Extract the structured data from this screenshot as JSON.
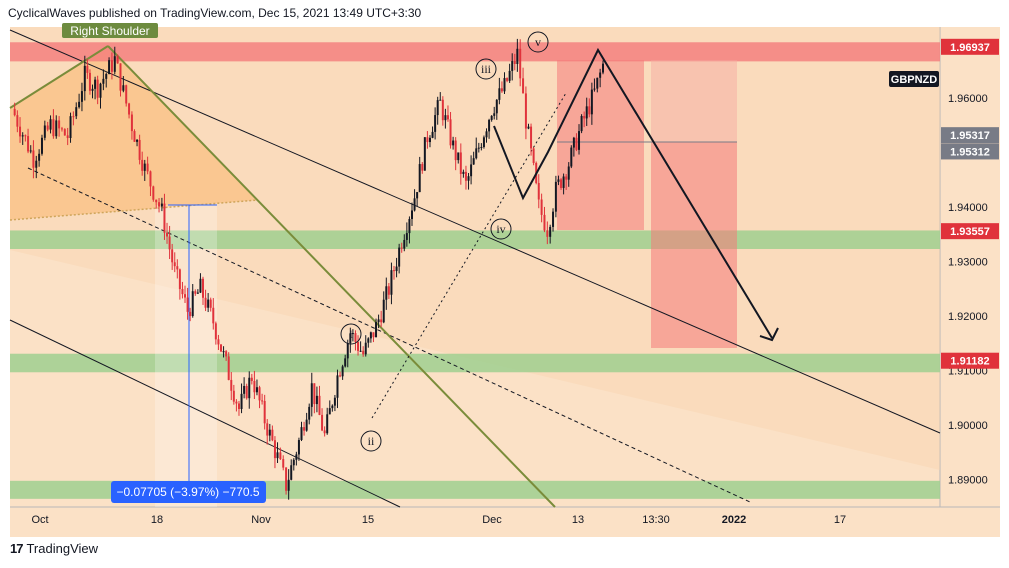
{
  "header": {
    "attribution": "CyclicalWaves published on TradingView.com, Dec 15, 2021 13:49 UTC+3:30"
  },
  "footer": {
    "brand": "TradingView",
    "logo_icon": "tradingview-logo-icon"
  },
  "colors": {
    "background": "#fbe1c6",
    "up": "#131722",
    "down": "#e0323b",
    "green_zone": "#9fcf8f",
    "red_zone": "#f47a7a",
    "label_red": "#e0323b",
    "label_gray": "#787b86",
    "label_black": "#131722",
    "measure_blue": "#2962ff"
  },
  "chart_data": {
    "type": "candlestick",
    "symbol_label": "GBPNZD",
    "currency_label": "NZD",
    "xlabels": [
      "Oct",
      "18",
      "Nov",
      "15",
      "Dec",
      "13",
      "13:30",
      "2022",
      "17"
    ],
    "ylim": [
      1.885,
      1.973
    ],
    "yticks": [
      1.89,
      1.9,
      1.91,
      1.92,
      1.93,
      1.94,
      1.95,
      1.96
    ],
    "price_labels": [
      {
        "value": "1.96937",
        "price": 1.96937,
        "style": "red"
      },
      {
        "value": "1.95317",
        "price": 1.95317,
        "style": "gray"
      },
      {
        "value": "1.95312",
        "price": 1.95312,
        "style": "gray"
      },
      {
        "value": "1.93557",
        "price": 1.93557,
        "style": "red"
      },
      {
        "value": "1.91182",
        "price": 1.91182,
        "style": "red"
      }
    ],
    "horizontal_zones": [
      {
        "type": "resistance",
        "from": 1.9667,
        "to": 1.9702
      },
      {
        "type": "support",
        "from": 1.9323,
        "to": 1.9357
      },
      {
        "type": "support",
        "from": 1.9097,
        "to": 1.9131
      },
      {
        "type": "support",
        "from": 1.8865,
        "to": 1.8898
      }
    ],
    "wave_labels": [
      "iii",
      "v",
      "iv",
      "i",
      "ii"
    ],
    "pattern_label": "Right Shoulder",
    "measure_label": "−0.07705 (−3.97%) −770.5",
    "price_path": [
      [
        0,
        1.958
      ],
      [
        5,
        1.949
      ],
      [
        9,
        1.955
      ],
      [
        13,
        1.953
      ],
      [
        17,
        1.964
      ],
      [
        20,
        1.962
      ],
      [
        24,
        1.967
      ],
      [
        28,
        1.955
      ],
      [
        31,
        1.947
      ],
      [
        35,
        1.939
      ],
      [
        38,
        1.928
      ],
      [
        41,
        1.921
      ],
      [
        44,
        1.925
      ],
      [
        47,
        1.919
      ],
      [
        50,
        1.911
      ],
      [
        53,
        1.903
      ],
      [
        56,
        1.909
      ],
      [
        59,
        1.901
      ],
      [
        62,
        1.894
      ],
      [
        64,
        1.889
      ],
      [
        67,
        1.897
      ],
      [
        70,
        1.907
      ],
      [
        73,
        1.898
      ],
      [
        76,
        1.909
      ],
      [
        79,
        1.917
      ],
      [
        82,
        1.913
      ],
      [
        85,
        1.918
      ],
      [
        88,
        1.925
      ],
      [
        91,
        1.934
      ],
      [
        94,
        1.942
      ],
      [
        97,
        1.953
      ],
      [
        100,
        1.959
      ],
      [
        103,
        1.951
      ],
      [
        106,
        1.944
      ],
      [
        109,
        1.951
      ],
      [
        112,
        1.958
      ],
      [
        115,
        1.962
      ],
      [
        118,
        1.968
      ],
      [
        120,
        1.956
      ],
      [
        123,
        1.94
      ],
      [
        125,
        1.936
      ],
      [
        127,
        1.943
      ],
      [
        130,
        1.948
      ],
      [
        133,
        1.955
      ],
      [
        136,
        1.961
      ],
      [
        138,
        1.966
      ]
    ]
  }
}
